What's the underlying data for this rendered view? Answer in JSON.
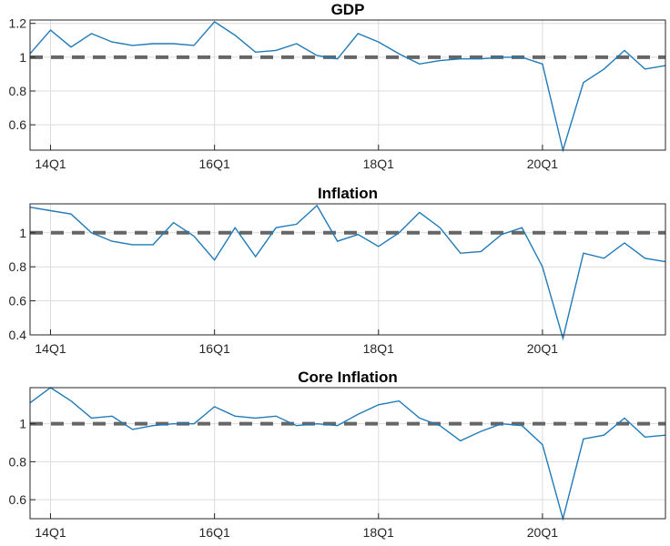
{
  "chart_data": [
    {
      "type": "line",
      "title": "GDP",
      "xlabel": "",
      "ylabel": "",
      "x_tick_labels": [
        "14Q1",
        "16Q1",
        "18Q1",
        "20Q1"
      ],
      "y_tick_labels": [
        "0.6",
        "0.8",
        "1",
        "1.2"
      ],
      "y_ticks": [
        0.6,
        0.8,
        1,
        1.2
      ],
      "ylim": [
        0.45,
        1.22
      ],
      "xlim": [
        "13Q4",
        "21Q3"
      ],
      "grid": true,
      "reference_line": {
        "value": 1,
        "style": "dashed",
        "color": "#666666"
      },
      "series": [
        {
          "x": [
            "13Q4",
            "14Q1",
            "14Q2",
            "14Q3",
            "14Q4",
            "15Q1",
            "15Q2",
            "15Q3",
            "15Q4",
            "16Q1",
            "16Q2",
            "16Q3",
            "16Q4",
            "17Q1",
            "17Q2",
            "17Q3",
            "17Q4",
            "18Q1",
            "18Q2",
            "18Q3",
            "18Q4",
            "19Q1",
            "19Q2",
            "19Q3",
            "19Q4",
            "20Q1",
            "20Q2",
            "20Q3",
            "20Q4",
            "21Q1",
            "21Q2",
            "21Q3"
          ],
          "values": [
            1.02,
            1.16,
            1.06,
            1.14,
            1.09,
            1.07,
            1.08,
            1.08,
            1.07,
            1.21,
            1.13,
            1.03,
            1.04,
            1.08,
            1.01,
            0.99,
            1.14,
            1.09,
            1.02,
            0.96,
            0.98,
            0.99,
            0.99,
            1.0,
            1.0,
            0.96,
            0.45,
            0.85,
            0.93,
            1.04,
            0.93,
            0.95
          ]
        }
      ]
    },
    {
      "type": "line",
      "title": "Inflation",
      "xlabel": "",
      "ylabel": "",
      "x_tick_labels": [
        "14Q1",
        "16Q1",
        "18Q1",
        "20Q1"
      ],
      "y_tick_labels": [
        "0.4",
        "0.6",
        "0.8",
        "1"
      ],
      "y_ticks": [
        0.4,
        0.6,
        0.8,
        1
      ],
      "ylim": [
        0.4,
        1.17
      ],
      "xlim": [
        "13Q4",
        "21Q3"
      ],
      "grid": true,
      "reference_line": {
        "value": 1,
        "style": "dashed",
        "color": "#666666"
      },
      "series": [
        {
          "x": [
            "13Q4",
            "14Q1",
            "14Q2",
            "14Q3",
            "14Q4",
            "15Q1",
            "15Q2",
            "15Q3",
            "15Q4",
            "16Q1",
            "16Q2",
            "16Q3",
            "16Q4",
            "17Q1",
            "17Q2",
            "17Q3",
            "17Q4",
            "18Q1",
            "18Q2",
            "18Q3",
            "18Q4",
            "19Q1",
            "19Q2",
            "19Q3",
            "19Q4",
            "20Q1",
            "20Q2",
            "20Q3",
            "20Q4",
            "21Q1",
            "21Q2",
            "21Q3"
          ],
          "values": [
            1.15,
            1.13,
            1.11,
            1.0,
            0.95,
            0.93,
            0.93,
            1.06,
            0.98,
            0.84,
            1.03,
            0.86,
            1.03,
            1.05,
            1.16,
            0.95,
            0.99,
            0.92,
            1.0,
            1.12,
            1.03,
            0.88,
            0.89,
            0.99,
            1.03,
            0.8,
            0.38,
            0.88,
            0.85,
            0.94,
            0.85,
            0.83
          ]
        }
      ]
    },
    {
      "type": "line",
      "title": "Core Inflation",
      "xlabel": "",
      "ylabel": "",
      "x_tick_labels": [
        "14Q1",
        "16Q1",
        "18Q1",
        "20Q1"
      ],
      "y_tick_labels": [
        "0.6",
        "0.8",
        "1"
      ],
      "y_ticks": [
        0.6,
        0.8,
        1
      ],
      "ylim": [
        0.5,
        1.19
      ],
      "xlim": [
        "13Q4",
        "21Q3"
      ],
      "grid": true,
      "reference_line": {
        "value": 1,
        "style": "dashed",
        "color": "#666666"
      },
      "series": [
        {
          "x": [
            "13Q4",
            "14Q1",
            "14Q2",
            "14Q3",
            "14Q4",
            "15Q1",
            "15Q2",
            "15Q3",
            "15Q4",
            "16Q1",
            "16Q2",
            "16Q3",
            "16Q4",
            "17Q1",
            "17Q2",
            "17Q3",
            "17Q4",
            "18Q1",
            "18Q2",
            "18Q3",
            "18Q4",
            "19Q1",
            "19Q2",
            "19Q3",
            "19Q4",
            "20Q1",
            "20Q2",
            "20Q3",
            "20Q4",
            "21Q1",
            "21Q2",
            "21Q3"
          ],
          "values": [
            1.11,
            1.19,
            1.12,
            1.03,
            1.04,
            0.97,
            0.99,
            1.0,
            1.0,
            1.09,
            1.04,
            1.03,
            1.04,
            0.99,
            1.0,
            0.99,
            1.05,
            1.1,
            1.12,
            1.03,
            0.99,
            0.91,
            0.96,
            1.0,
            0.99,
            0.89,
            0.5,
            0.92,
            0.94,
            1.03,
            0.93,
            0.94
          ]
        }
      ]
    }
  ],
  "colors": {
    "series": "#1f7ab8",
    "reference_line": "#666666",
    "grid": "#dcdcdc",
    "axes": "#262626"
  }
}
